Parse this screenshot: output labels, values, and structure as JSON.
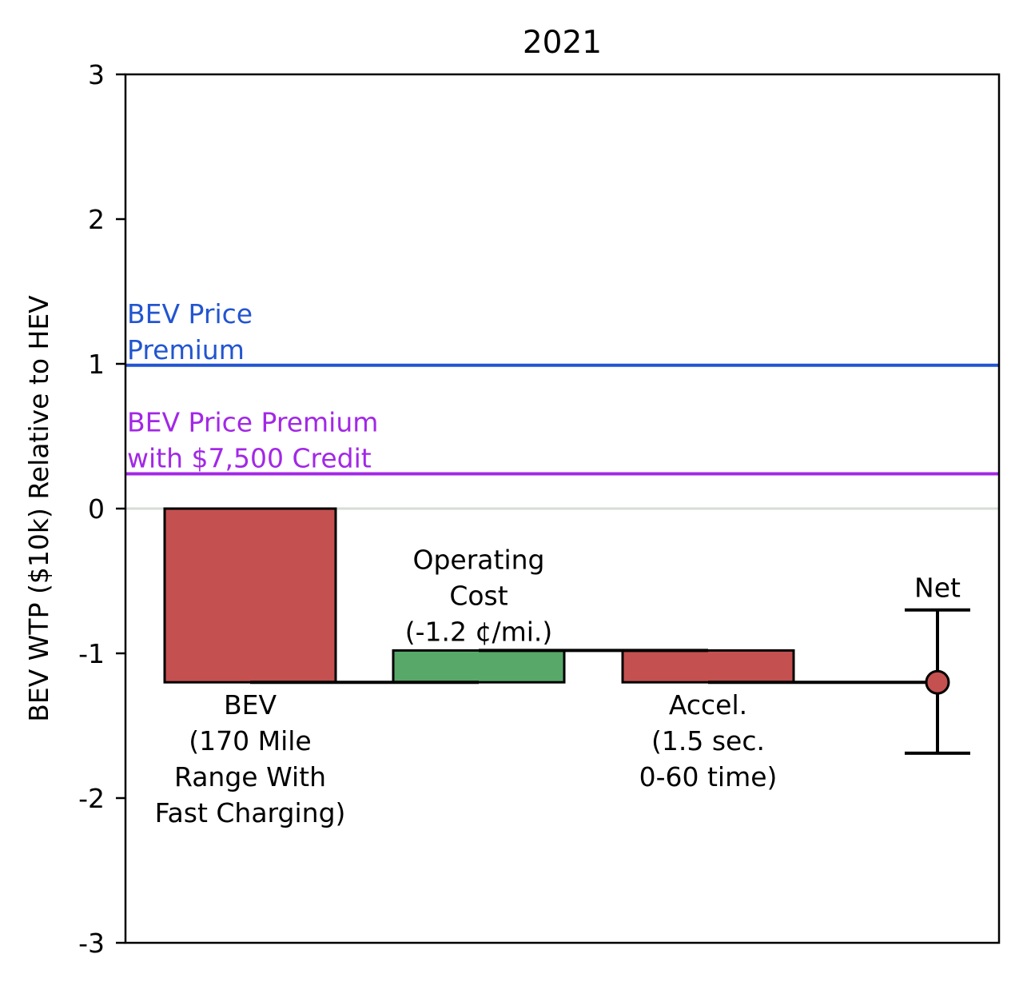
{
  "chart_data": {
    "type": "bar",
    "chart_kind": "waterfall",
    "title": "2021",
    "ylabel": "BEV WTP ($10k) Relative to HEV",
    "xlabel": "",
    "ylim": [
      -3,
      3
    ],
    "yticks": [
      3,
      2,
      1,
      0,
      -1,
      -2,
      -3
    ],
    "ytick_labels": [
      "3",
      "2",
      "1",
      "0",
      "-1",
      "-2",
      "-3"
    ],
    "grid": false,
    "reference_lines": [
      {
        "value": 0.99,
        "color": "#2255d0",
        "label_lines": [
          "BEV Price",
          "Premium"
        ]
      },
      {
        "value": 0.24,
        "color": "#a228e6",
        "label_lines": [
          "BEV Price Premium",
          "with $7,500 Credit"
        ]
      }
    ],
    "zero_line_color": "#d5ddd5",
    "steps": [
      {
        "name": "BEV",
        "label_lines": [
          "BEV",
          "(170 Mile",
          "Range With",
          "Fast Charging)"
        ],
        "label_pos": "below",
        "start": 0,
        "end": -1.2,
        "color": "#c45050"
      },
      {
        "name": "Operating Cost",
        "label_lines": [
          "Operating",
          "Cost",
          "(-1.2 ¢/mi.)"
        ],
        "label_pos": "above",
        "start": -1.2,
        "end": -0.98,
        "color": "#58a86a"
      },
      {
        "name": "Accel.",
        "label_lines": [
          "Accel.",
          "(1.5 sec.",
          "0-60 time)"
        ],
        "label_pos": "below",
        "start": -0.98,
        "end": -1.2,
        "color": "#c45050"
      }
    ],
    "net": {
      "label": "Net",
      "value": -1.2,
      "lower": -1.69,
      "upper": -0.7,
      "color": "#c45050"
    }
  }
}
